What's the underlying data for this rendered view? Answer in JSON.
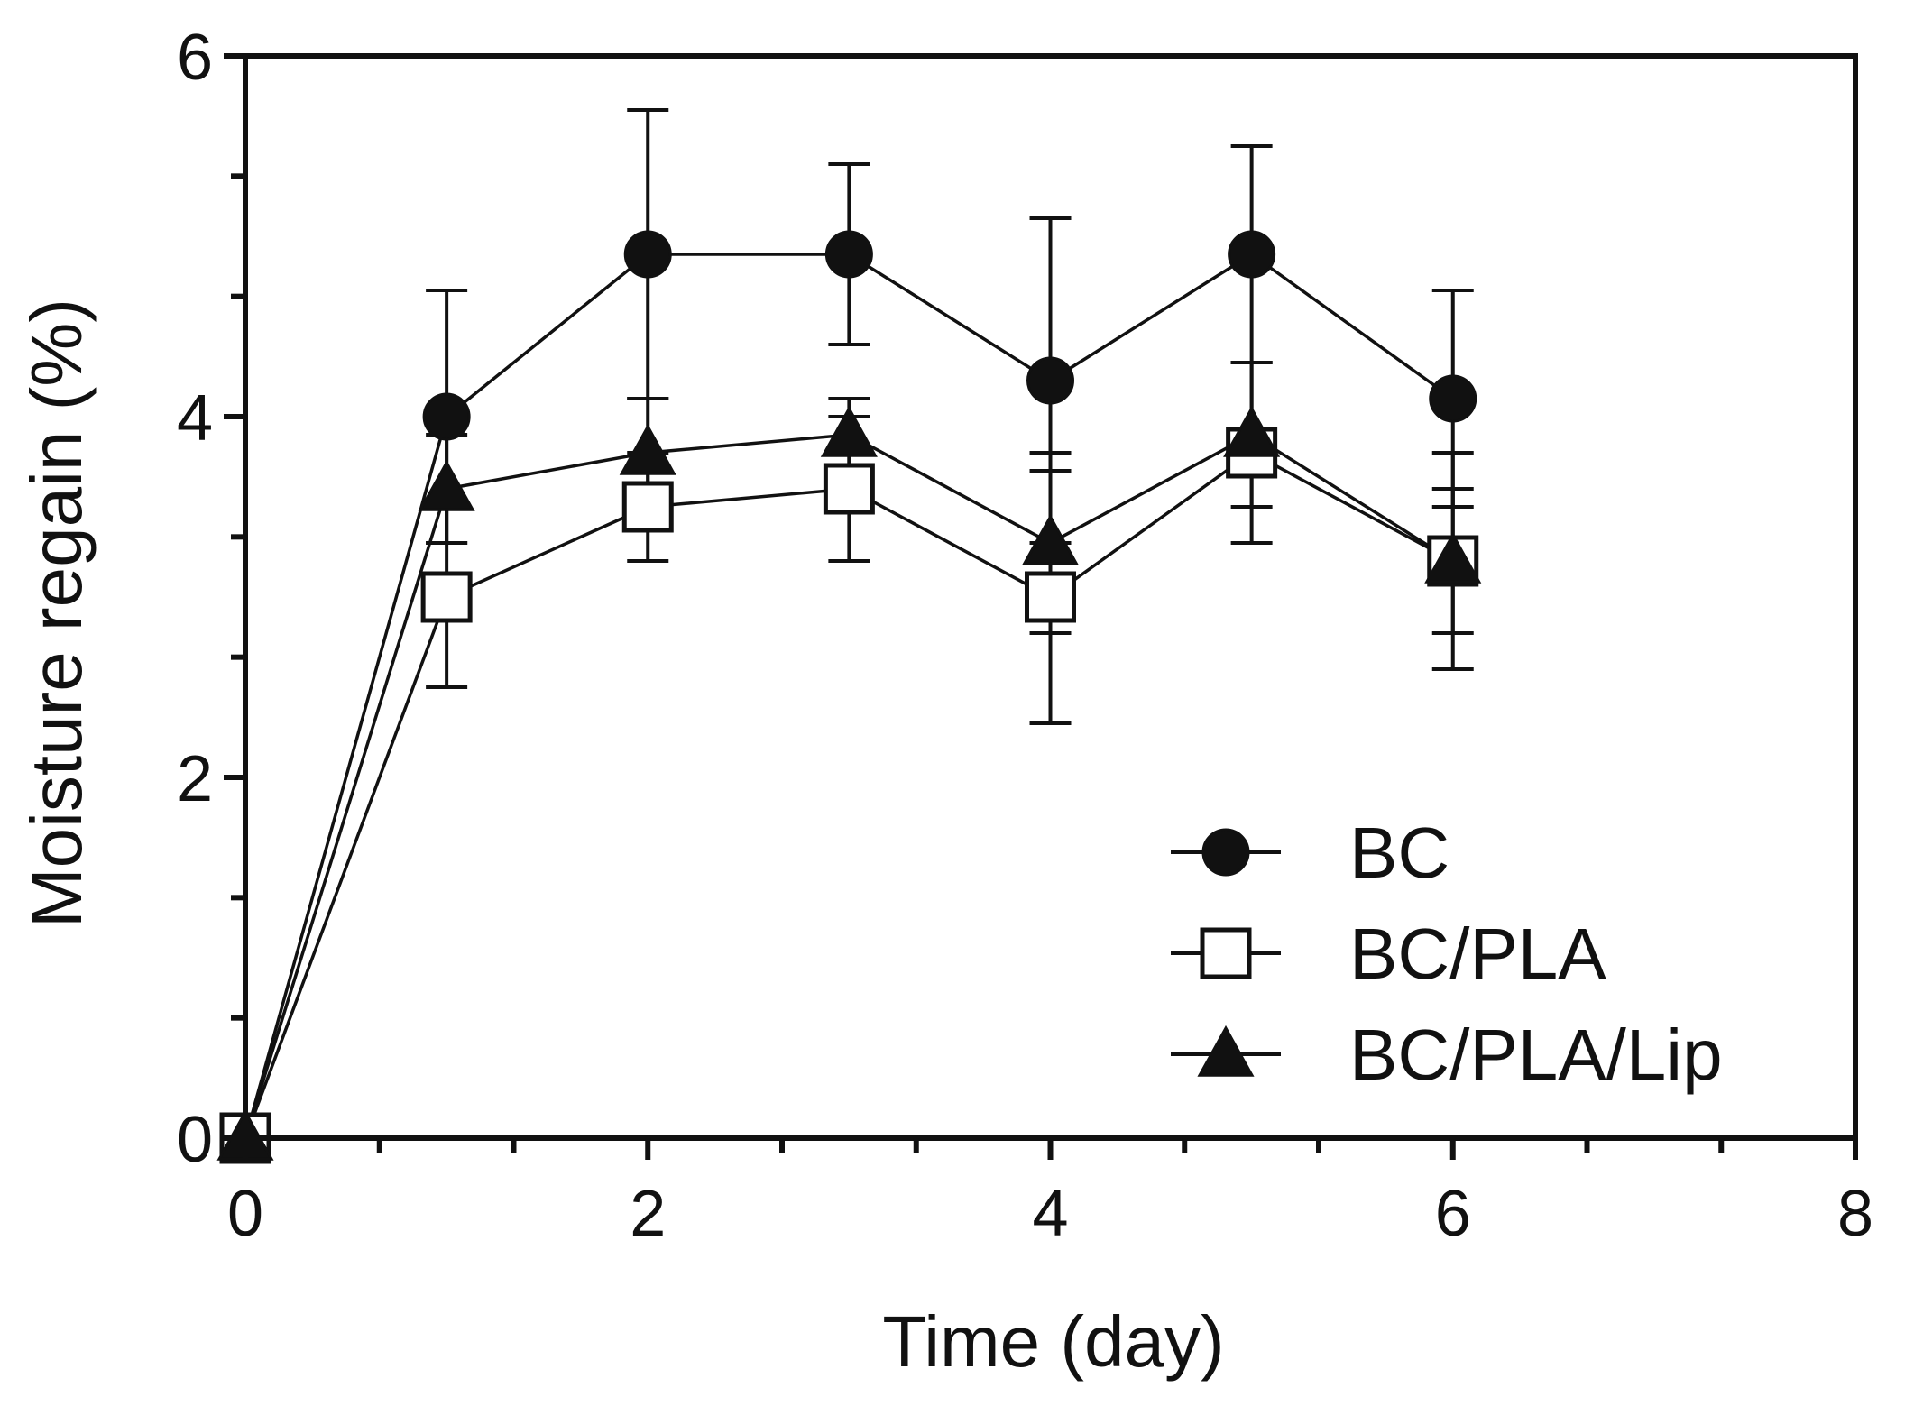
{
  "chart_data": {
    "type": "line",
    "title": "",
    "xlabel": "Time (day)",
    "ylabel": "Moisture regain (%)",
    "xlim": [
      0,
      8
    ],
    "ylim": [
      0,
      6
    ],
    "xticks": [
      0,
      2,
      4,
      6,
      8
    ],
    "yticks": [
      0,
      2,
      4,
      6
    ],
    "x_tick_labels": [
      "0",
      "2",
      "4",
      "6",
      "8"
    ],
    "y_tick_labels": [
      "0",
      "2",
      "4",
      "6"
    ],
    "grid": false,
    "legend_position": "bottom-right",
    "x": [
      0,
      1,
      2,
      3,
      4,
      5,
      6
    ],
    "series": [
      {
        "name": "BC",
        "marker": "filled-circle",
        "values": [
          0,
          4.0,
          4.9,
          4.9,
          4.2,
          4.9,
          4.1
        ],
        "errors": [
          0,
          0.7,
          0.8,
          0.5,
          0.9,
          0.6,
          0.6
        ]
      },
      {
        "name": "BC/PLA",
        "marker": "open-square",
        "values": [
          0,
          3.0,
          3.5,
          3.6,
          3.0,
          3.8,
          3.2
        ],
        "errors": [
          0,
          0.5,
          0.3,
          0.4,
          0.7,
          0.5,
          0.6
        ]
      },
      {
        "name": "BC/PLA/Lip",
        "marker": "filled-triangle",
        "values": [
          0,
          3.6,
          3.8,
          3.9,
          3.3,
          3.9,
          3.2
        ],
        "errors": [
          0,
          0.3,
          0.3,
          0.2,
          0.5,
          0.4,
          0.4
        ]
      }
    ]
  },
  "colors": {
    "axis": "#111111",
    "line": "#111111",
    "marker_fill": "#111111",
    "marker_hollow": "#ffffff"
  }
}
